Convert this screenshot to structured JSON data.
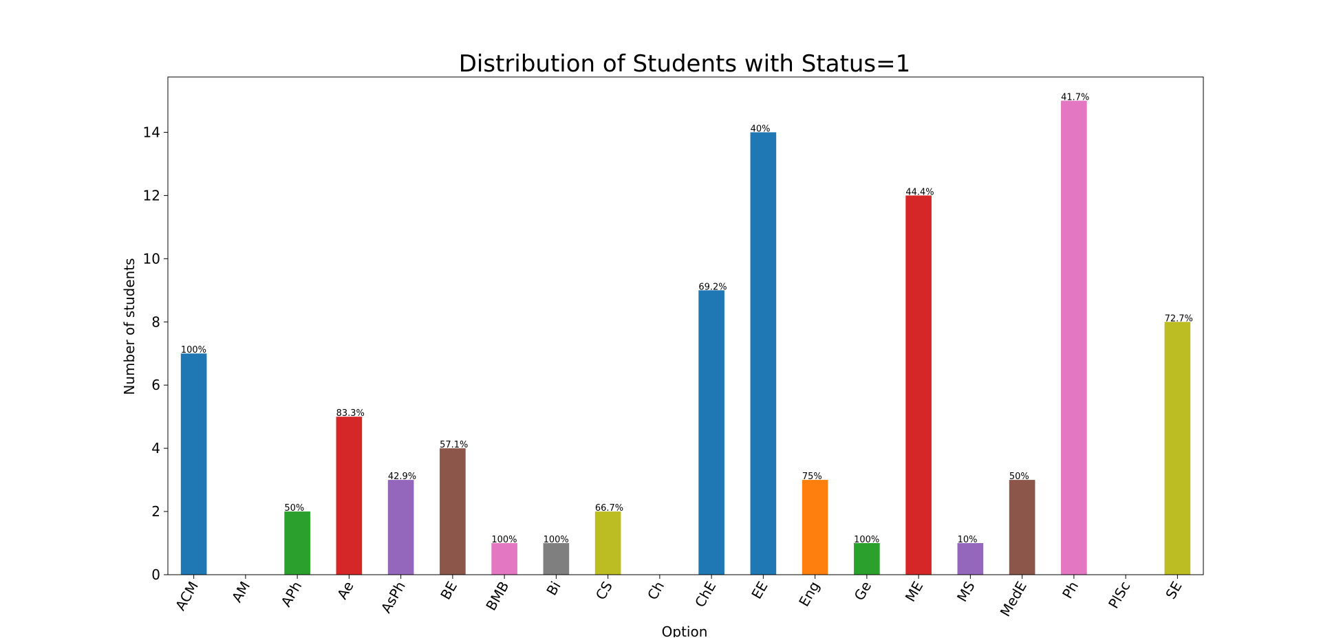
{
  "chart_data": {
    "type": "bar",
    "title": "Distribution of Students with Status=1",
    "xlabel": "Option",
    "ylabel": "Number of students",
    "categories": [
      "ACM",
      "AM",
      "APh",
      "Ae",
      "AsPh",
      "BE",
      "BMB",
      "Bi",
      "CS",
      "Ch",
      "ChE",
      "EE",
      "Eng",
      "Ge",
      "ME",
      "MS",
      "MedE",
      "Ph",
      "PlSc",
      "SE"
    ],
    "values": [
      7,
      0,
      2,
      5,
      3,
      4,
      1,
      1,
      2,
      0,
      9,
      14,
      3,
      1,
      12,
      1,
      3,
      15,
      0,
      8
    ],
    "data_labels": [
      "100%",
      "",
      "50%",
      "83.3%",
      "42.9%",
      "57.1%",
      "100%",
      "100%",
      "66.7%",
      "",
      "69.2%",
      "40%",
      "75%",
      "100%",
      "44.4%",
      "10%",
      "50%",
      "41.7%",
      "",
      "72.7%"
    ],
    "bar_colors": [
      "#1f77b4",
      "#ff7f0e",
      "#2ca02c",
      "#d62728",
      "#9467bd",
      "#8c564b",
      "#e377c2",
      "#7f7f7f",
      "#bcbd22",
      "#17becf",
      "#1f77b4",
      "#1f77b4",
      "#ff7f0e",
      "#2ca02c",
      "#d62728",
      "#9467bd",
      "#8c564b",
      "#e377c2",
      "#7f7f7f",
      "#bcbd22"
    ],
    "ylim": [
      0,
      15.75
    ],
    "yticks": [
      0,
      2,
      4,
      6,
      8,
      10,
      12,
      14
    ],
    "grid": false,
    "legend": "none"
  }
}
